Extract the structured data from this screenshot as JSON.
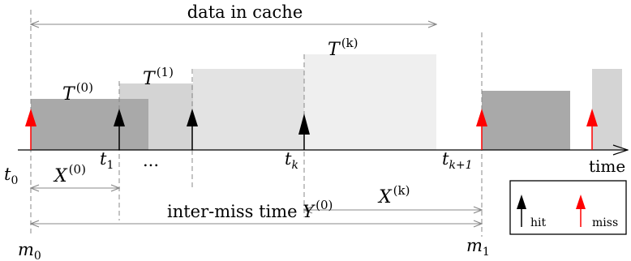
{
  "labels": {
    "data_in_cache": "data in cache",
    "time_axis": "time",
    "inter_miss_prefix": "inter-miss time ",
    "dots": "...",
    "T": "T",
    "X": "X",
    "Y": "Y",
    "t": "t",
    "m": "m",
    "sup_0": "(0)",
    "sup_1": "(1)",
    "sup_k": "(k)",
    "sub_0": "0",
    "sub_1": "1",
    "sub_k": "k",
    "sub_k1": "k+1"
  },
  "legend": {
    "hit": "hit",
    "miss": "miss"
  },
  "colors": {
    "hit_arrow": "#000000",
    "miss_arrow": "#ff0000",
    "block_dark": "#a9a9a9",
    "block_medium": "#d4d4d4",
    "block_light": "#e3e3e3",
    "block_lightest": "#efefef",
    "dashed_line": "#888888",
    "span_arrow": "#888888"
  }
}
